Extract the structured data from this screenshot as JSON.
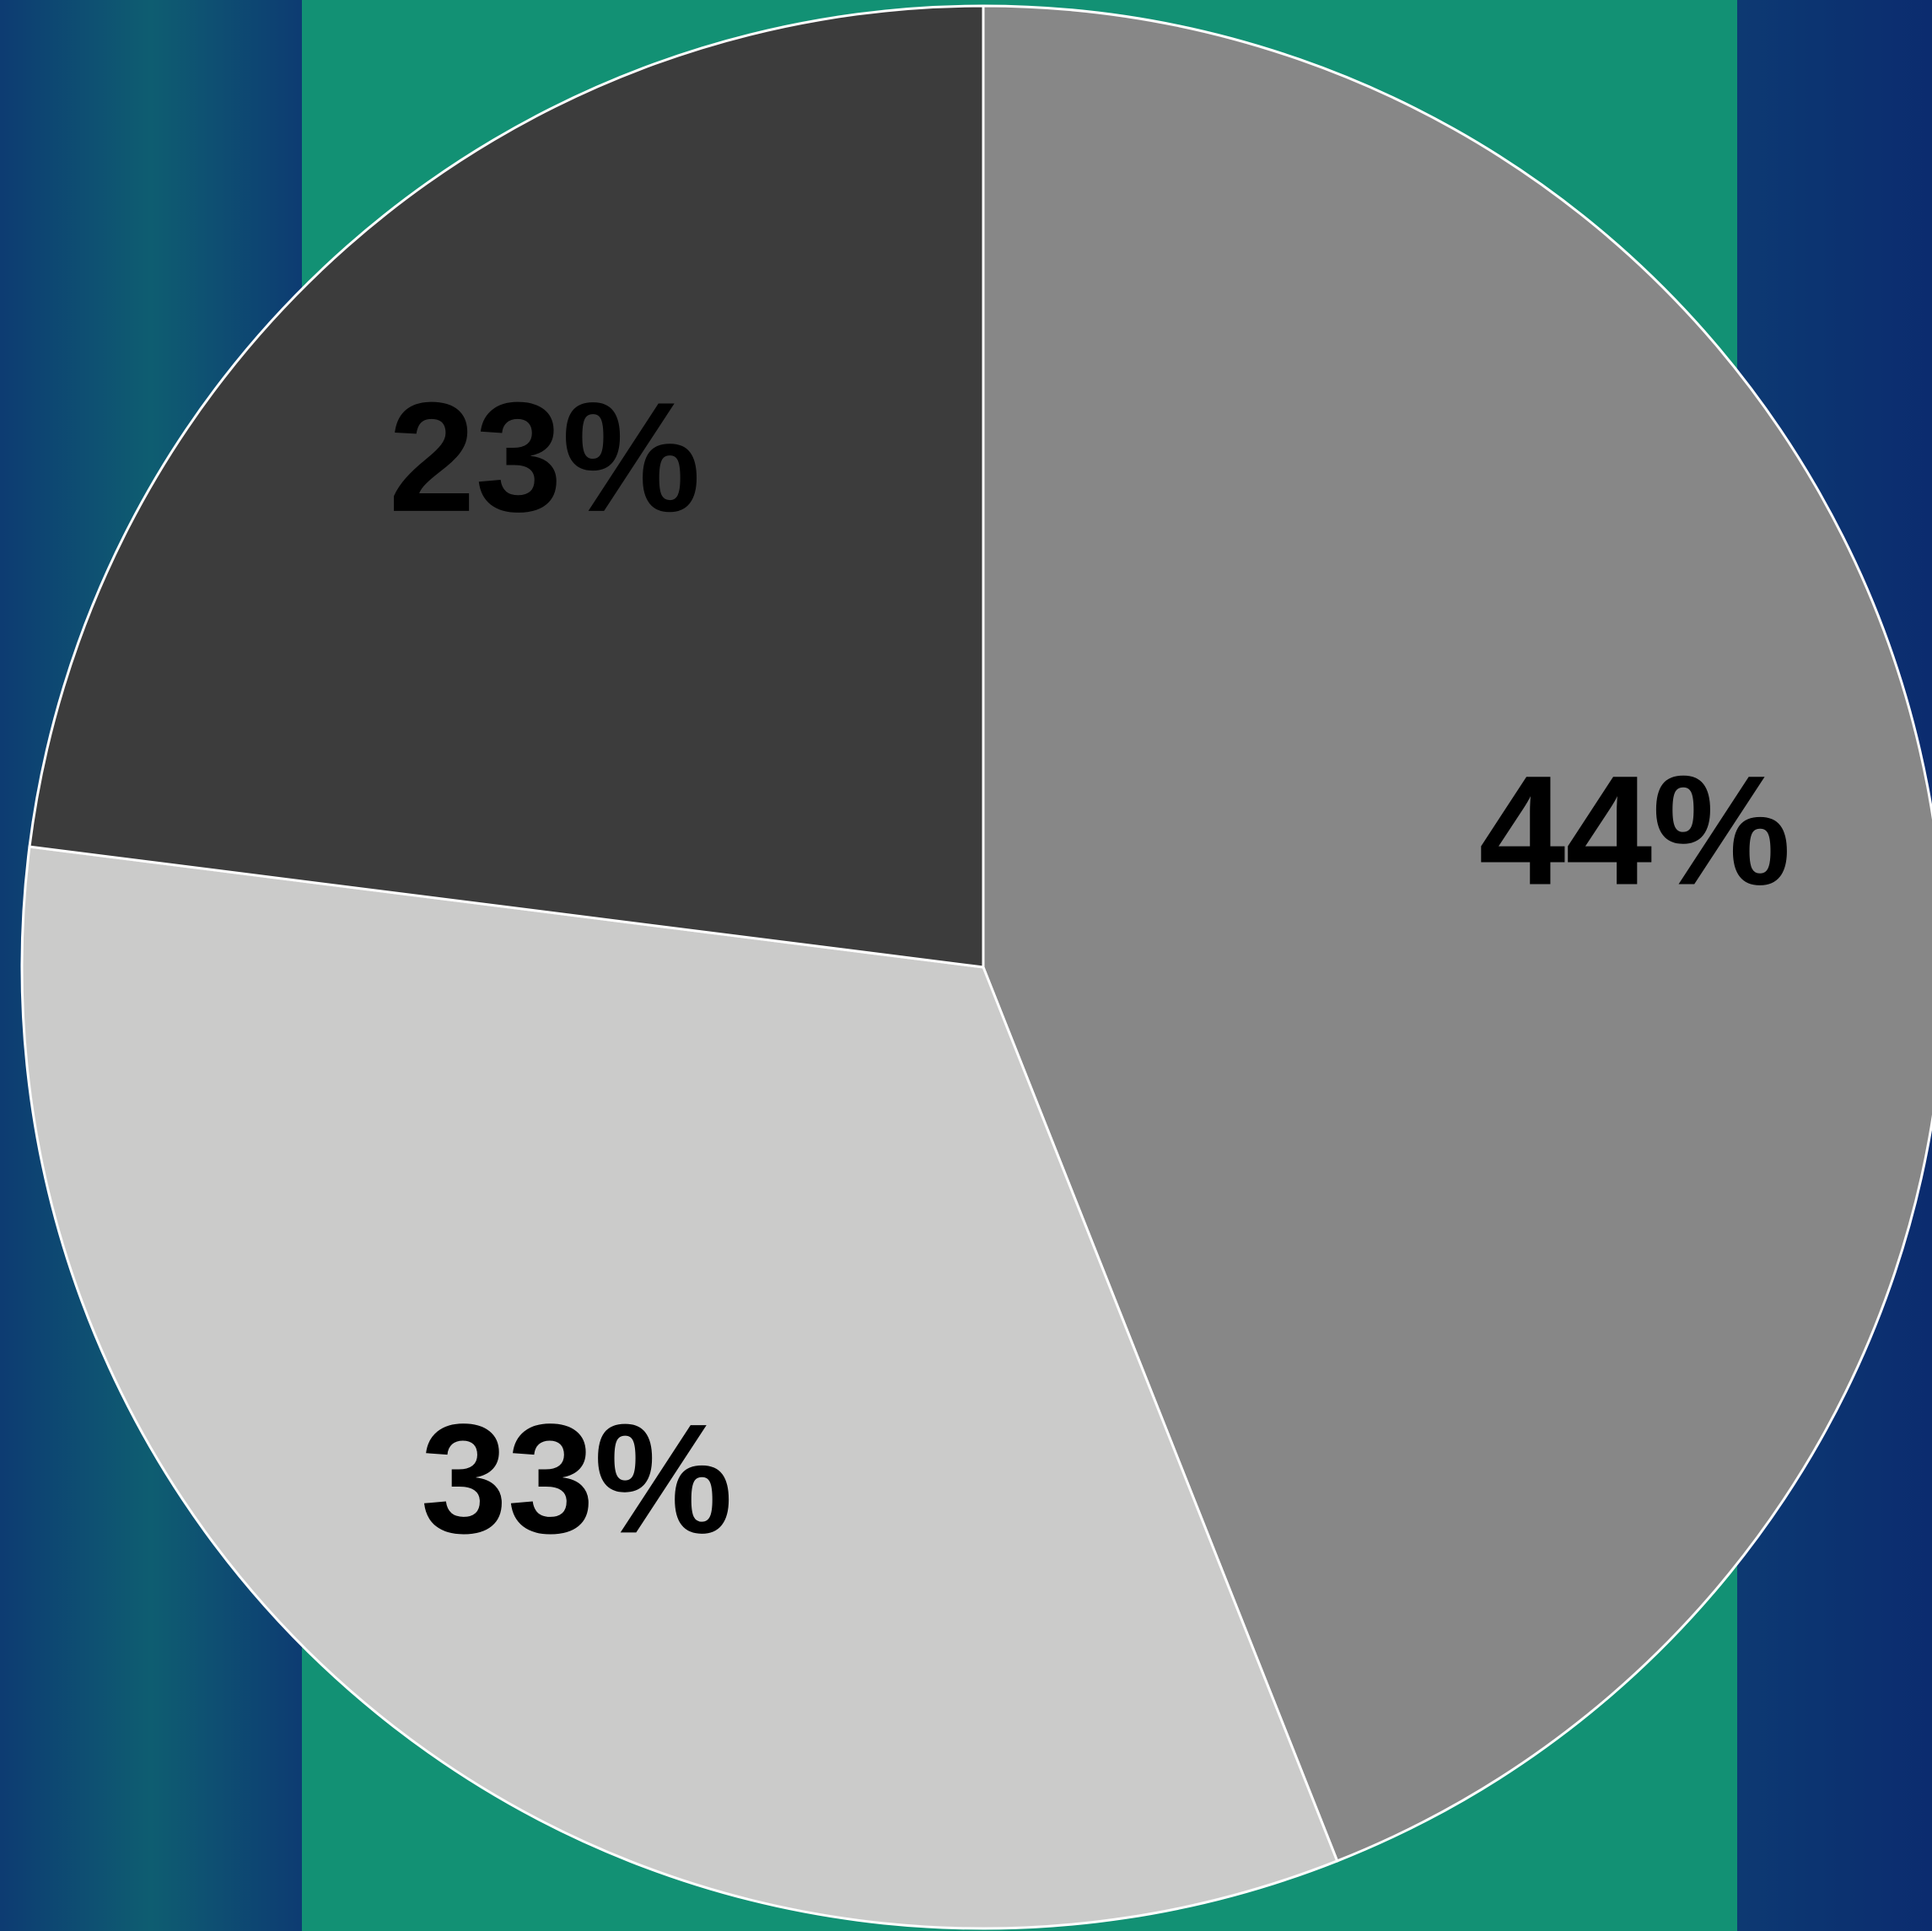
{
  "chart_data": {
    "type": "pie",
    "values": [
      44,
      33,
      23
    ],
    "value_labels": [
      "44%",
      "33%",
      "23%"
    ],
    "colors": [
      "#878787",
      "#cbcbca",
      "#3c3c3c"
    ]
  }
}
